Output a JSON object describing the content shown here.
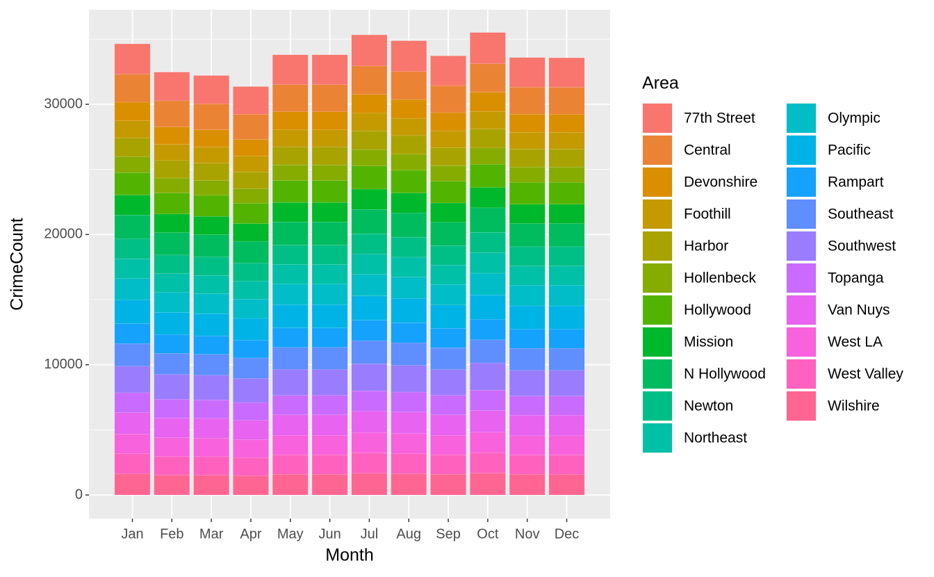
{
  "chart_data": {
    "type": "stacked_bar",
    "x_label": "Month",
    "y_label": "CrimeCount",
    "legend_title": "Area",
    "categories": [
      "Jan",
      "Feb",
      "Mar",
      "Apr",
      "May",
      "Jun",
      "Jul",
      "Aug",
      "Sep",
      "Oct",
      "Nov",
      "Dec"
    ],
    "ylim": [
      -1815,
      37260
    ],
    "yticks": [
      0,
      10000,
      20000,
      30000
    ],
    "grid": true,
    "legend_position": "right",
    "series": [
      {
        "name": "77th Street",
        "color": "#F8766D",
        "values": [
          2340,
          2200,
          2180,
          2120,
          2290,
          2290,
          2390,
          2360,
          2280,
          2400,
          2270,
          2270
        ]
      },
      {
        "name": "Central",
        "color": "#EB8335",
        "values": [
          2140,
          2010,
          1990,
          1940,
          2090,
          2090,
          2180,
          2150,
          2080,
          2190,
          2080,
          2070
        ]
      },
      {
        "name": "Devonshire",
        "color": "#DA8F00",
        "values": [
          1430,
          1340,
          1330,
          1290,
          1390,
          1390,
          1450,
          1440,
          1390,
          1460,
          1380,
          1380
        ]
      },
      {
        "name": "Foothill",
        "color": "#C49A00",
        "values": [
          1320,
          1240,
          1230,
          1200,
          1290,
          1290,
          1350,
          1330,
          1290,
          1360,
          1290,
          1280
        ]
      },
      {
        "name": "Harbor",
        "color": "#A9A300",
        "values": [
          1430,
          1340,
          1330,
          1290,
          1390,
          1390,
          1450,
          1440,
          1390,
          1460,
          1380,
          1380
        ]
      },
      {
        "name": "Hollenbeck",
        "color": "#86AC00",
        "values": [
          1220,
          1150,
          1140,
          1110,
          1200,
          1200,
          1250,
          1230,
          1190,
          1250,
          1190,
          1190
        ]
      },
      {
        "name": "Hollywood",
        "color": "#53B400",
        "values": [
          1730,
          1620,
          1610,
          1570,
          1690,
          1690,
          1770,
          1740,
          1680,
          1770,
          1680,
          1680
        ]
      },
      {
        "name": "Mission",
        "color": "#00B82B",
        "values": [
          1530,
          1430,
          1420,
          1380,
          1490,
          1490,
          1560,
          1540,
          1490,
          1570,
          1480,
          1480
        ]
      },
      {
        "name": "N Hollywood",
        "color": "#00BC5F",
        "values": [
          1830,
          1720,
          1700,
          1660,
          1790,
          1790,
          1870,
          1850,
          1780,
          1880,
          1780,
          1780
        ]
      },
      {
        "name": "Newton",
        "color": "#00BF86",
        "values": [
          1530,
          1430,
          1420,
          1380,
          1490,
          1490,
          1560,
          1540,
          1490,
          1570,
          1480,
          1480
        ]
      },
      {
        "name": "Northeast",
        "color": "#00C0A8",
        "values": [
          1530,
          1430,
          1420,
          1380,
          1490,
          1490,
          1560,
          1540,
          1490,
          1570,
          1480,
          1480
        ]
      },
      {
        "name": "Olympic",
        "color": "#00BDC8",
        "values": [
          1630,
          1530,
          1520,
          1480,
          1590,
          1590,
          1660,
          1640,
          1590,
          1670,
          1580,
          1580
        ]
      },
      {
        "name": "Pacific",
        "color": "#00B3E6",
        "values": [
          1830,
          1720,
          1700,
          1660,
          1790,
          1790,
          1870,
          1850,
          1780,
          1880,
          1780,
          1780
        ]
      },
      {
        "name": "Rampart",
        "color": "#14A2FC",
        "values": [
          1530,
          1430,
          1420,
          1380,
          1490,
          1490,
          1560,
          1540,
          1490,
          1570,
          1480,
          1480
        ]
      },
      {
        "name": "Southeast",
        "color": "#5E8EFF",
        "values": [
          1730,
          1620,
          1610,
          1570,
          1690,
          1690,
          1770,
          1740,
          1680,
          1770,
          1680,
          1680
        ]
      },
      {
        "name": "Southwest",
        "color": "#9A7CFF",
        "values": [
          2040,
          1910,
          1890,
          1850,
          1990,
          1990,
          2080,
          2050,
          1980,
          2090,
          1980,
          1980
        ]
      },
      {
        "name": "Topanga",
        "color": "#C96BFF",
        "values": [
          1530,
          1430,
          1420,
          1380,
          1490,
          1490,
          1560,
          1540,
          1490,
          1570,
          1480,
          1480
        ]
      },
      {
        "name": "Van Nuys",
        "color": "#E763F0",
        "values": [
          1630,
          1530,
          1520,
          1480,
          1590,
          1590,
          1660,
          1640,
          1590,
          1670,
          1580,
          1580
        ]
      },
      {
        "name": "West LA",
        "color": "#F862DC",
        "values": [
          1530,
          1430,
          1420,
          1380,
          1490,
          1490,
          1560,
          1540,
          1490,
          1570,
          1480,
          1480
        ]
      },
      {
        "name": "West Valley",
        "color": "#FF61BE",
        "values": [
          1530,
          1430,
          1420,
          1380,
          1490,
          1490,
          1560,
          1540,
          1490,
          1570,
          1480,
          1480
        ]
      },
      {
        "name": "Wilshire",
        "color": "#FF6592",
        "values": [
          1630,
          1530,
          1520,
          1480,
          1590,
          1590,
          1660,
          1640,
          1590,
          1670,
          1580,
          1580
        ]
      }
    ]
  }
}
